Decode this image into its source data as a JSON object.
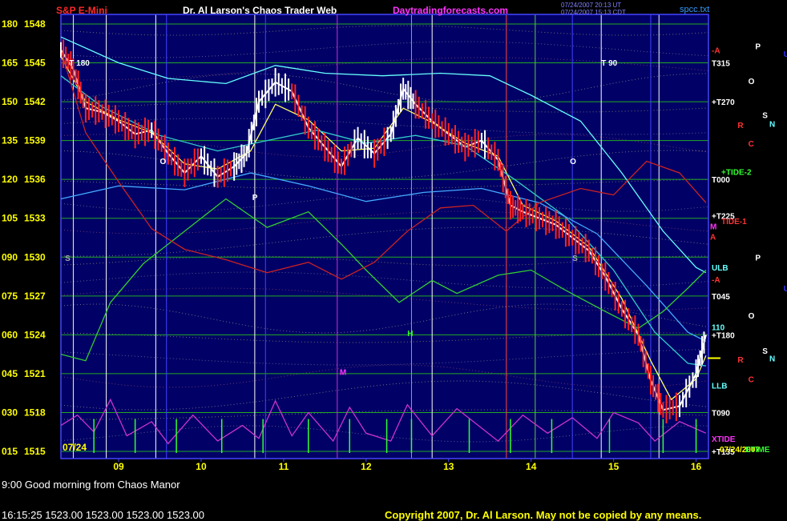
{
  "header": {
    "symbol": "S&P E-Mini",
    "title": "Dr. Al Larson's Chaos Trader Web",
    "site": "Daytradingforecasts.com",
    "stamp_line1": "07/24/2007 20:13 UT",
    "stamp_line2": "07/24/2007 15:13 CDT",
    "file": "spcc.txt"
  },
  "footer": {
    "message": "9:00 Good morning from Chaos Manor",
    "quote": "16:15:25  1523.00  1523.00  1523.00  1523.00",
    "copyright": "Copyright 2007, Dr. Al Larson. May not be copied by any means."
  },
  "chart_data": {
    "type": "line",
    "date_label": "07/24",
    "ylim": [
      1515,
      1548
    ],
    "left_scale": [
      {
        "a": "180",
        "price": "1548"
      },
      {
        "a": "165",
        "price": "1545"
      },
      {
        "a": "150",
        "price": "1542"
      },
      {
        "a": "135",
        "price": "1539"
      },
      {
        "a": "120",
        "price": "1536"
      },
      {
        "a": "105",
        "price": "1533"
      },
      {
        "a": "090",
        "price": "1530"
      },
      {
        "a": "075",
        "price": "1527"
      },
      {
        "a": "060",
        "price": "1524"
      },
      {
        "a": "045",
        "price": "1521"
      },
      {
        "a": "030",
        "price": "1518"
      },
      {
        "a": "015",
        "price": "1515"
      }
    ],
    "x_ticks": [
      "09",
      "10",
      "11",
      "12",
      "13",
      "14",
      "15",
      "16"
    ],
    "x_range": [
      8.3,
      16.15
    ],
    "series": [
      {
        "color": "#ffffff",
        "points": [
          [
            8.3,
            1546
          ],
          [
            8.45,
            1544.5
          ],
          [
            8.6,
            1541.5
          ],
          [
            8.8,
            1541.2
          ],
          [
            9.0,
            1540.5
          ],
          [
            9.2,
            1539.5
          ],
          [
            9.4,
            1539.8
          ],
          [
            9.6,
            1538
          ],
          [
            9.8,
            1536.5
          ],
          [
            10.0,
            1537.8
          ],
          [
            10.2,
            1536.2
          ],
          [
            10.4,
            1537
          ],
          [
            10.55,
            1538
          ],
          [
            10.7,
            1542
          ],
          [
            10.9,
            1543.5
          ],
          [
            11.1,
            1542.8
          ],
          [
            11.3,
            1540
          ],
          [
            11.5,
            1538.5
          ],
          [
            11.7,
            1537
          ],
          [
            11.9,
            1539.2
          ],
          [
            12.1,
            1538
          ],
          [
            12.3,
            1539.5
          ],
          [
            12.45,
            1543
          ],
          [
            12.6,
            1541.8
          ],
          [
            12.8,
            1540.5
          ],
          [
            13.0,
            1539.5
          ],
          [
            13.2,
            1538.5
          ],
          [
            13.4,
            1539
          ],
          [
            13.6,
            1537.5
          ],
          [
            13.75,
            1534
          ],
          [
            13.9,
            1533.5
          ],
          [
            14.1,
            1533
          ],
          [
            14.3,
            1532.5
          ],
          [
            14.5,
            1531.5
          ],
          [
            14.7,
            1530.5
          ],
          [
            14.9,
            1528.5
          ],
          [
            15.1,
            1526
          ],
          [
            15.3,
            1524
          ],
          [
            15.45,
            1520.5
          ],
          [
            15.6,
            1518.2
          ],
          [
            15.8,
            1518.5
          ],
          [
            16.0,
            1521
          ],
          [
            16.12,
            1524
          ]
        ]
      },
      {
        "color": "#ffff66",
        "points": [
          [
            8.3,
            1545.5
          ],
          [
            8.6,
            1542
          ],
          [
            9.0,
            1540.6
          ],
          [
            9.4,
            1539.6
          ],
          [
            9.8,
            1537.2
          ],
          [
            10.2,
            1536.8
          ],
          [
            10.6,
            1538.2
          ],
          [
            10.9,
            1541.8
          ],
          [
            11.3,
            1540.6
          ],
          [
            11.7,
            1538.2
          ],
          [
            12.1,
            1538.4
          ],
          [
            12.45,
            1541.5
          ],
          [
            12.8,
            1540.4
          ],
          [
            13.2,
            1538.8
          ],
          [
            13.6,
            1537.8
          ],
          [
            13.9,
            1534
          ],
          [
            14.3,
            1532.8
          ],
          [
            14.7,
            1530.8
          ],
          [
            15.1,
            1526.8
          ],
          [
            15.45,
            1522
          ],
          [
            15.7,
            1519
          ],
          [
            16.0,
            1520.6
          ],
          [
            16.12,
            1522.4
          ]
        ]
      },
      {
        "color": "#33cccc",
        "points": [
          [
            8.3,
            1544
          ],
          [
            8.8,
            1541.6
          ],
          [
            9.5,
            1539.4
          ],
          [
            10.2,
            1538.2
          ],
          [
            10.8,
            1539
          ],
          [
            11.4,
            1539.8
          ],
          [
            12.0,
            1538.8
          ],
          [
            12.6,
            1539.4
          ],
          [
            13.2,
            1538.6
          ],
          [
            13.8,
            1536
          ],
          [
            14.4,
            1533.2
          ],
          [
            15.0,
            1529
          ],
          [
            15.5,
            1524.2
          ],
          [
            15.9,
            1521.8
          ],
          [
            16.12,
            1521.6
          ]
        ]
      },
      {
        "color": "#66ffff",
        "points": [
          [
            8.3,
            1547
          ],
          [
            9.0,
            1545
          ],
          [
            9.6,
            1543.8
          ],
          [
            10.3,
            1543.4
          ],
          [
            10.9,
            1544.8
          ],
          [
            11.5,
            1544.2
          ],
          [
            12.2,
            1544
          ],
          [
            12.9,
            1544.2
          ],
          [
            13.5,
            1544
          ],
          [
            14.0,
            1542.5
          ],
          [
            14.6,
            1540.5
          ],
          [
            15.1,
            1536.5
          ],
          [
            15.6,
            1532
          ],
          [
            16.0,
            1529.2
          ],
          [
            16.12,
            1528.8
          ]
        ]
      },
      {
        "color": "#44aaff",
        "points": [
          [
            8.3,
            1534.5
          ],
          [
            9.0,
            1535.5
          ],
          [
            9.8,
            1535.2
          ],
          [
            10.6,
            1536.5
          ],
          [
            11.3,
            1535.5
          ],
          [
            12.0,
            1534.3
          ],
          [
            12.7,
            1535
          ],
          [
            13.4,
            1535.3
          ],
          [
            14.1,
            1534.2
          ],
          [
            14.8,
            1531.8
          ],
          [
            15.4,
            1527.8
          ],
          [
            15.9,
            1524.2
          ],
          [
            16.12,
            1523.5
          ]
        ]
      },
      {
        "color": "#33cc33",
        "points": [
          [
            8.3,
            1522.5
          ],
          [
            8.6,
            1522
          ],
          [
            8.9,
            1526.5
          ],
          [
            9.3,
            1529.5
          ],
          [
            9.8,
            1532
          ],
          [
            10.3,
            1534.5
          ],
          [
            10.8,
            1532.3
          ],
          [
            11.3,
            1533.5
          ],
          [
            11.7,
            1531
          ],
          [
            12.0,
            1529
          ],
          [
            12.4,
            1526.5
          ],
          [
            12.8,
            1528.2
          ],
          [
            13.1,
            1527.2
          ],
          [
            13.6,
            1528.6
          ],
          [
            14.0,
            1529
          ],
          [
            14.4,
            1527.5
          ],
          [
            14.9,
            1525.8
          ],
          [
            15.3,
            1524.5
          ],
          [
            15.6,
            1525.8
          ],
          [
            15.9,
            1527.6
          ],
          [
            16.12,
            1529
          ]
        ]
      },
      {
        "color": "#cc2222",
        "points": [
          [
            8.3,
            1546
          ],
          [
            8.6,
            1539.6
          ],
          [
            9.0,
            1535.8
          ],
          [
            9.4,
            1532.2
          ],
          [
            9.8,
            1530.6
          ],
          [
            10.3,
            1529.8
          ],
          [
            10.8,
            1528.8
          ],
          [
            11.3,
            1529.6
          ],
          [
            11.7,
            1528.3
          ],
          [
            12.1,
            1529.6
          ],
          [
            12.5,
            1532
          ],
          [
            12.9,
            1533.8
          ],
          [
            13.3,
            1534
          ],
          [
            13.7,
            1532
          ],
          [
            14.1,
            1534.2
          ],
          [
            14.6,
            1535.3
          ],
          [
            15.0,
            1534.8
          ],
          [
            15.4,
            1537.4
          ],
          [
            15.8,
            1536.5
          ],
          [
            16.12,
            1534.2
          ]
        ]
      },
      {
        "color": "#cc33cc",
        "points": [
          [
            8.3,
            1517
          ],
          [
            8.5,
            1517.8
          ],
          [
            8.7,
            1516.5
          ],
          [
            8.9,
            1519
          ],
          [
            9.1,
            1516.2
          ],
          [
            9.4,
            1517.3
          ],
          [
            9.6,
            1515.6
          ],
          [
            9.9,
            1517.8
          ],
          [
            10.2,
            1515.8
          ],
          [
            10.5,
            1517
          ],
          [
            10.7,
            1516
          ],
          [
            10.9,
            1518.9
          ],
          [
            11.1,
            1516.2
          ],
          [
            11.3,
            1518
          ],
          [
            11.6,
            1515.8
          ],
          [
            11.8,
            1518.4
          ],
          [
            12.0,
            1516.4
          ],
          [
            12.3,
            1515.8
          ],
          [
            12.5,
            1518.6
          ],
          [
            12.8,
            1516.2
          ],
          [
            13.1,
            1518.3
          ],
          [
            13.4,
            1516.8
          ],
          [
            13.6,
            1515.8
          ],
          [
            13.9,
            1517.8
          ],
          [
            14.2,
            1516.4
          ],
          [
            14.5,
            1517.6
          ],
          [
            14.8,
            1516
          ],
          [
            15.0,
            1518
          ],
          [
            15.3,
            1517.2
          ],
          [
            15.5,
            1515.8
          ],
          [
            15.8,
            1517.3
          ],
          [
            16.12,
            1516.4
          ]
        ]
      }
    ],
    "spikes_x": [
      8.7,
      9.2,
      9.7,
      10.25,
      10.75,
      11.3,
      11.8,
      12.25,
      12.55,
      13.25,
      13.75,
      14.25,
      14.95,
      15.6,
      16.0
    ],
    "spike_top": 1517.5,
    "vlines": [
      {
        "x": 8.45,
        "color": "#ffff66"
      },
      {
        "x": 8.85,
        "color": "#ffffff"
      },
      {
        "x": 9.45,
        "color": "#ffffff"
      },
      {
        "x": 9.58,
        "color": "#4444ff"
      },
      {
        "x": 10.65,
        "color": "#ffffff"
      },
      {
        "x": 10.78,
        "color": "#4444ff"
      },
      {
        "x": 11.65,
        "color": "#cc33cc"
      },
      {
        "x": 12.8,
        "color": "#ffffff"
      },
      {
        "x": 12.55,
        "color": "#66cc33"
      },
      {
        "x": 13.7,
        "color": "#ff4444"
      },
      {
        "x": 14.05,
        "color": "#66cc33"
      },
      {
        "x": 14.5,
        "color": "#4444ff"
      },
      {
        "x": 14.85,
        "color": "#ffffff"
      },
      {
        "x": 15.55,
        "color": "#ffffff"
      },
      {
        "x": 15.45,
        "color": "#4444ff"
      },
      {
        "x": 16.15,
        "color": "#4444ff"
      }
    ],
    "right_labels": [
      {
        "text": "-A",
        "y": 1546.0,
        "color": "#ff3333"
      },
      {
        "text": "T315",
        "y": 1545.0,
        "color": "#ffffff"
      },
      {
        "text": "+T270",
        "y": 1542.0,
        "color": "#ffffff"
      },
      {
        "text": "+TIDE-2",
        "y": 1536.6,
        "color": "#33ff33"
      },
      {
        "text": "T000",
        "y": 1536.0,
        "color": "#ffffff"
      },
      {
        "text": "+T225",
        "y": 1533.2,
        "color": "#ffffff"
      },
      {
        "text": "TIDE-1",
        "y": 1532.8,
        "color": "#ff3333"
      },
      {
        "text": "M",
        "y": 1532.4,
        "color": "#ff33ff"
      },
      {
        "text": "A",
        "y": 1531.6,
        "color": "#ff3333"
      },
      {
        "text": "ULB",
        "y": 1529.2,
        "color": "#66ffff"
      },
      {
        "text": "-A",
        "y": 1528.3,
        "color": "#ff3333"
      },
      {
        "text": "T045",
        "y": 1527.0,
        "color": "#ffffff"
      },
      {
        "text": "110",
        "y": 1524.6,
        "color": "#66ffff"
      },
      {
        "text": "+T180",
        "y": 1524.0,
        "color": "#ffffff"
      },
      {
        "text": "LLB",
        "y": 1520.1,
        "color": "#66ffff"
      },
      {
        "text": "T090",
        "y": 1518.0,
        "color": "#ffffff"
      },
      {
        "text": "XTIDE",
        "y": 1516.0,
        "color": "#ff33ff"
      },
      {
        "text": "+T135",
        "y": 1515.0,
        "color": "#ffffff"
      },
      {
        "text": "07/24/2007",
        "y": 1515.2,
        "color": "#ffff00"
      },
      {
        "text": "ETIME",
        "y": 1515.2,
        "color": "#33ff33"
      }
    ],
    "planet_glyphs": [
      {
        "text": "P",
        "y": 1546.3,
        "color": "#ffffff",
        "col": 0.55
      },
      {
        "text": "U",
        "y": 1545.7,
        "color": "#3333ff",
        "col": 0.95
      },
      {
        "text": "O",
        "y": 1543.6,
        "color": "#ffffff",
        "col": 0.45
      },
      {
        "text": "S",
        "y": 1541.0,
        "color": "#ffffff",
        "col": 0.65
      },
      {
        "text": "N",
        "y": 1540.3,
        "color": "#66ffff",
        "col": 0.75
      },
      {
        "text": "R",
        "y": 1540.2,
        "color": "#ff3333",
        "col": 0.3
      },
      {
        "text": "C",
        "y": 1538.8,
        "color": "#ff3333",
        "col": 0.45
      },
      {
        "text": "P",
        "y": 1530.0,
        "color": "#ffffff",
        "col": 0.55
      },
      {
        "text": "U",
        "y": 1527.6,
        "color": "#3333ff",
        "col": 0.95
      },
      {
        "text": "O",
        "y": 1525.5,
        "color": "#ffffff",
        "col": 0.45
      },
      {
        "text": "S",
        "y": 1522.8,
        "color": "#ffffff",
        "col": 0.65
      },
      {
        "text": "N",
        "y": 1522.2,
        "color": "#66ffff",
        "col": 0.75
      },
      {
        "text": "R",
        "y": 1522.1,
        "color": "#ff3333",
        "col": 0.3
      },
      {
        "text": "C",
        "y": 1520.6,
        "color": "#ff3333",
        "col": 0.45
      }
    ],
    "in_chart_labels": [
      {
        "text": "T 180",
        "x": 8.4,
        "y": 1544.8,
        "color": "#ffffff"
      },
      {
        "text": "T 90",
        "x": 14.85,
        "y": 1544.8,
        "color": "#ffffff"
      },
      {
        "text": "S",
        "x": 8.35,
        "y": 1529.7,
        "color": "#aaaaaa"
      },
      {
        "text": "O",
        "x": 9.5,
        "y": 1537.2,
        "color": "#ffffff"
      },
      {
        "text": "P",
        "x": 10.62,
        "y": 1534.4,
        "color": "#ffffff"
      },
      {
        "text": "M",
        "x": 11.68,
        "y": 1520.9,
        "color": "#ff33ff"
      },
      {
        "text": "H",
        "x": 12.5,
        "y": 1523.9,
        "color": "#33ff33"
      },
      {
        "text": "S",
        "x": 14.5,
        "y": 1529.7,
        "color": "#aaaaaa"
      },
      {
        "text": "O",
        "x": 14.47,
        "y": 1537.2,
        "color": "#ffffff"
      }
    ]
  }
}
